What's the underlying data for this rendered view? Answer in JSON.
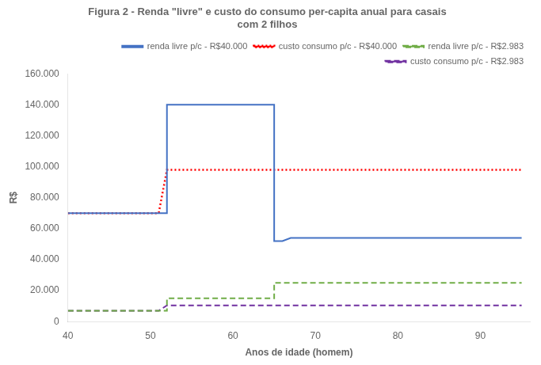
{
  "chart_data": {
    "type": "line",
    "title": "Figura 2 - Renda \"livre\" e custo do consumo per-capita anual para casais\ncom 2 filhos",
    "x_label": "Anos de idade (homem)",
    "y_label": "R$",
    "xlim": [
      40,
      96
    ],
    "ylim": [
      0,
      160000
    ],
    "xticks": [
      40,
      50,
      60,
      70,
      80,
      90
    ],
    "yticks": [
      0,
      {
        "value": 20000,
        "label": "20.000"
      },
      {
        "value": 40000,
        "label": "40.000"
      },
      {
        "value": 60000,
        "label": "60.000"
      },
      {
        "value": 80000,
        "label": "80.000"
      },
      {
        "value": 100000,
        "label": "100.000"
      },
      {
        "value": 120000,
        "label": "120.000"
      },
      {
        "value": 140000,
        "label": "140.000"
      },
      {
        "value": 160000,
        "label": "160.000"
      }
    ],
    "grid": false,
    "legend": "upper right",
    "series": [
      {
        "name": "renda livre p/c - R$40.000",
        "color": "#4472C4",
        "line_style": "solid",
        "x": [
          40,
          51,
          52,
          52,
          65,
          65,
          66,
          67,
          95
        ],
        "values": [
          70000,
          70000,
          70000,
          140000,
          140000,
          52000,
          52000,
          54000,
          54000
        ]
      },
      {
        "name": "custo consumo p/c - R$40.000",
        "color": "#FF0000",
        "line_style": "dotted",
        "x": [
          40,
          51,
          52,
          95
        ],
        "values": [
          70000,
          70000,
          98000,
          98000
        ]
      },
      {
        "name": "renda livre p/c - R$2.983",
        "color": "#70AD47",
        "line_style": "dashed",
        "x": [
          40,
          51,
          52,
          52,
          65,
          65,
          66,
          95
        ],
        "values": [
          7000,
          7000,
          7000,
          15000,
          15000,
          25000,
          25000,
          25000
        ]
      },
      {
        "name": "custo consumo p/c - R$2.983",
        "color": "#7030A0",
        "line_style": "dashed",
        "x": [
          40,
          51,
          52,
          95
        ],
        "values": [
          7000,
          7000,
          10500,
          10500
        ]
      }
    ]
  }
}
